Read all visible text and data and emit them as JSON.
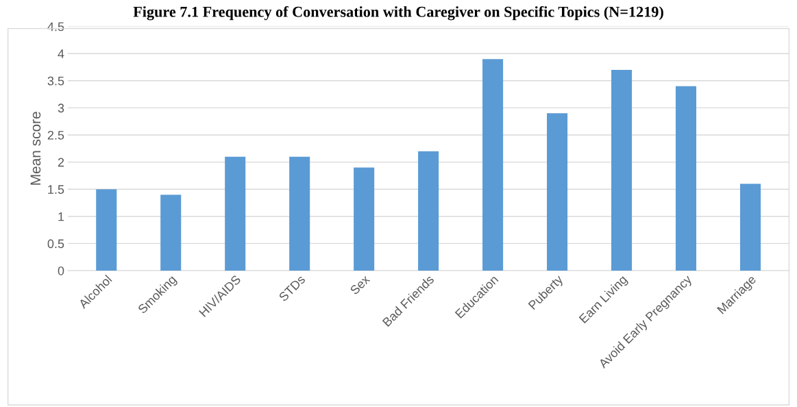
{
  "chart_data": {
    "type": "bar",
    "title": "Figure 7.1 Frequency of Conversation with Caregiver on Specific Topics (N=1219)",
    "ylabel": "Mean score",
    "categories": [
      "Alcohol",
      "Smoking",
      "HIV/AIDS",
      "STDs",
      "Sex",
      "Bad Friends",
      "Education",
      "Puberty",
      "Earn Living",
      "Avoid Early Pregnancy",
      "Marriage"
    ],
    "values": [
      1.5,
      1.4,
      2.1,
      2.1,
      1.9,
      2.2,
      3.9,
      2.9,
      3.7,
      3.4,
      1.6
    ],
    "color": "#5b9bd5",
    "ylim": [
      0,
      4.5
    ],
    "yticks": [
      0,
      0.5,
      1,
      1.5,
      2,
      2.5,
      3,
      3.5,
      4,
      4.5
    ],
    "grid": "y",
    "legend": false
  }
}
